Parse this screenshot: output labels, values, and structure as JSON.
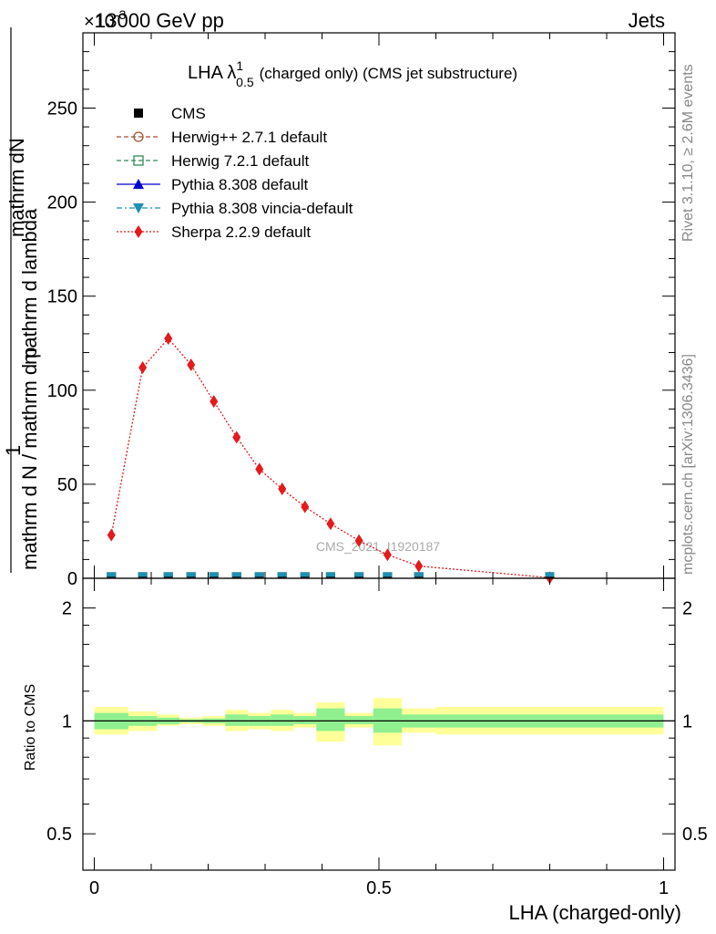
{
  "header": {
    "left": "13000 GeV pp",
    "right": "Jets",
    "exponent": "×10",
    "exponent_power": "-3"
  },
  "side_labels": {
    "rivet": "Rivet 3.1.10, ≥ 2.6M events",
    "mcplots": "mcplots.cern.ch [arXiv:1306.3436]"
  },
  "watermark": "CMS_2021_I1920187",
  "chart_data": [
    {
      "type": "line",
      "title": "LHA λ",
      "title_sup": "1",
      "title_sub": "0.5",
      "title_rest": "(charged only) (CMS jet substructure)",
      "ylabel_numer": "1",
      "ylabel_numer2": "mathrm dN",
      "ylabel_denom": "mathrm d N / mathrm d p_T mathrm d p_T mathrm d lambda",
      "ylabel_denom_shown": "mathrm d N / mathrm d p",
      "ylabel_denom_mid": "mathrm d p",
      "ylabel_denom_end": "mathrm d lambda",
      "ylim": [
        0,
        290
      ],
      "xlim": [
        -0.02,
        1.02
      ],
      "yticks": [
        0,
        50,
        100,
        150,
        200,
        250
      ],
      "ytick_labels": [
        "0",
        "50",
        "100",
        "150",
        "200",
        "250"
      ],
      "legend": [
        {
          "name": "CMS",
          "color": "#000000",
          "marker": "square-filled",
          "line": "none"
        },
        {
          "name": "Herwig++ 2.7.1 default",
          "color": "#a0522d",
          "marker": "circle-open",
          "line": "dashed"
        },
        {
          "name": "Herwig 7.2.1 default",
          "color": "#2e8b57",
          "marker": "square-open",
          "line": "dashed"
        },
        {
          "name": "Pythia 8.308 default",
          "color": "#0000cd",
          "marker": "triangle-up",
          "line": "solid"
        },
        {
          "name": "Pythia 8.308 vincia-default",
          "color": "#1e90b0",
          "marker": "triangle-down",
          "line": "dashdot"
        },
        {
          "name": "Sherpa 2.2.9 default",
          "color": "#e41a1c",
          "marker": "diamond",
          "line": "dotted"
        }
      ],
      "x": [
        0.03,
        0.085,
        0.13,
        0.17,
        0.21,
        0.25,
        0.29,
        0.33,
        0.37,
        0.415,
        0.465,
        0.515,
        0.57,
        0.8
      ],
      "series": [
        {
          "name": "Sherpa 2.2.9 default",
          "values": [
            23,
            112,
            127.5,
            113.5,
            94,
            75,
            58,
            47.5,
            38,
            29,
            20,
            12.5,
            6.5,
            0.3
          ]
        },
        {
          "name": "CMS",
          "values": [
            0.3,
            0.3,
            0.3,
            0.3,
            0.3,
            0.3,
            0.3,
            0.3,
            0.3,
            0.3,
            0.3,
            0.3,
            0.3,
            0.3
          ]
        }
      ]
    },
    {
      "type": "area",
      "ylabel": "Ratio to CMS",
      "xlabel": "LHA (charged-only)",
      "ylim": [
        0.4,
        2.4
      ],
      "log_scale": true,
      "yticks": [
        0.5,
        1,
        2
      ],
      "ytick_labels": [
        "0.5",
        "1",
        "2"
      ],
      "xticks": [
        0,
        0.5,
        1
      ],
      "xtick_labels": [
        "0",
        "0.5",
        "1"
      ],
      "bins": [
        {
          "lo": 0.0,
          "hi": 0.06,
          "yel": [
            0.92,
            1.09
          ],
          "grn": [
            0.95,
            1.05
          ]
        },
        {
          "lo": 0.06,
          "hi": 0.11,
          "yel": [
            0.94,
            1.06
          ],
          "grn": [
            0.97,
            1.03
          ]
        },
        {
          "lo": 0.11,
          "hi": 0.15,
          "yel": [
            0.97,
            1.04
          ],
          "grn": [
            0.98,
            1.02
          ]
        },
        {
          "lo": 0.15,
          "hi": 0.19,
          "yel": [
            0.98,
            1.02
          ],
          "grn": [
            0.99,
            1.01
          ]
        },
        {
          "lo": 0.19,
          "hi": 0.23,
          "yel": [
            0.97,
            1.03
          ],
          "grn": [
            0.985,
            1.015
          ]
        },
        {
          "lo": 0.23,
          "hi": 0.27,
          "yel": [
            0.94,
            1.07
          ],
          "grn": [
            0.97,
            1.04
          ]
        },
        {
          "lo": 0.27,
          "hi": 0.31,
          "yel": [
            0.95,
            1.05
          ],
          "grn": [
            0.97,
            1.03
          ]
        },
        {
          "lo": 0.31,
          "hi": 0.35,
          "yel": [
            0.94,
            1.07
          ],
          "grn": [
            0.97,
            1.04
          ]
        },
        {
          "lo": 0.35,
          "hi": 0.39,
          "yel": [
            0.96,
            1.05
          ],
          "grn": [
            0.98,
            1.03
          ]
        },
        {
          "lo": 0.39,
          "hi": 0.44,
          "yel": [
            0.88,
            1.12
          ],
          "grn": [
            0.94,
            1.08
          ]
        },
        {
          "lo": 0.44,
          "hi": 0.49,
          "yel": [
            0.96,
            1.05
          ],
          "grn": [
            0.98,
            1.03
          ]
        },
        {
          "lo": 0.49,
          "hi": 0.54,
          "yel": [
            0.86,
            1.15
          ],
          "grn": [
            0.93,
            1.08
          ]
        },
        {
          "lo": 0.54,
          "hi": 0.6,
          "yel": [
            0.93,
            1.08
          ],
          "grn": [
            0.96,
            1.04
          ]
        },
        {
          "lo": 0.6,
          "hi": 1.0,
          "yel": [
            0.92,
            1.09
          ],
          "grn": [
            0.96,
            1.04
          ]
        }
      ]
    }
  ]
}
